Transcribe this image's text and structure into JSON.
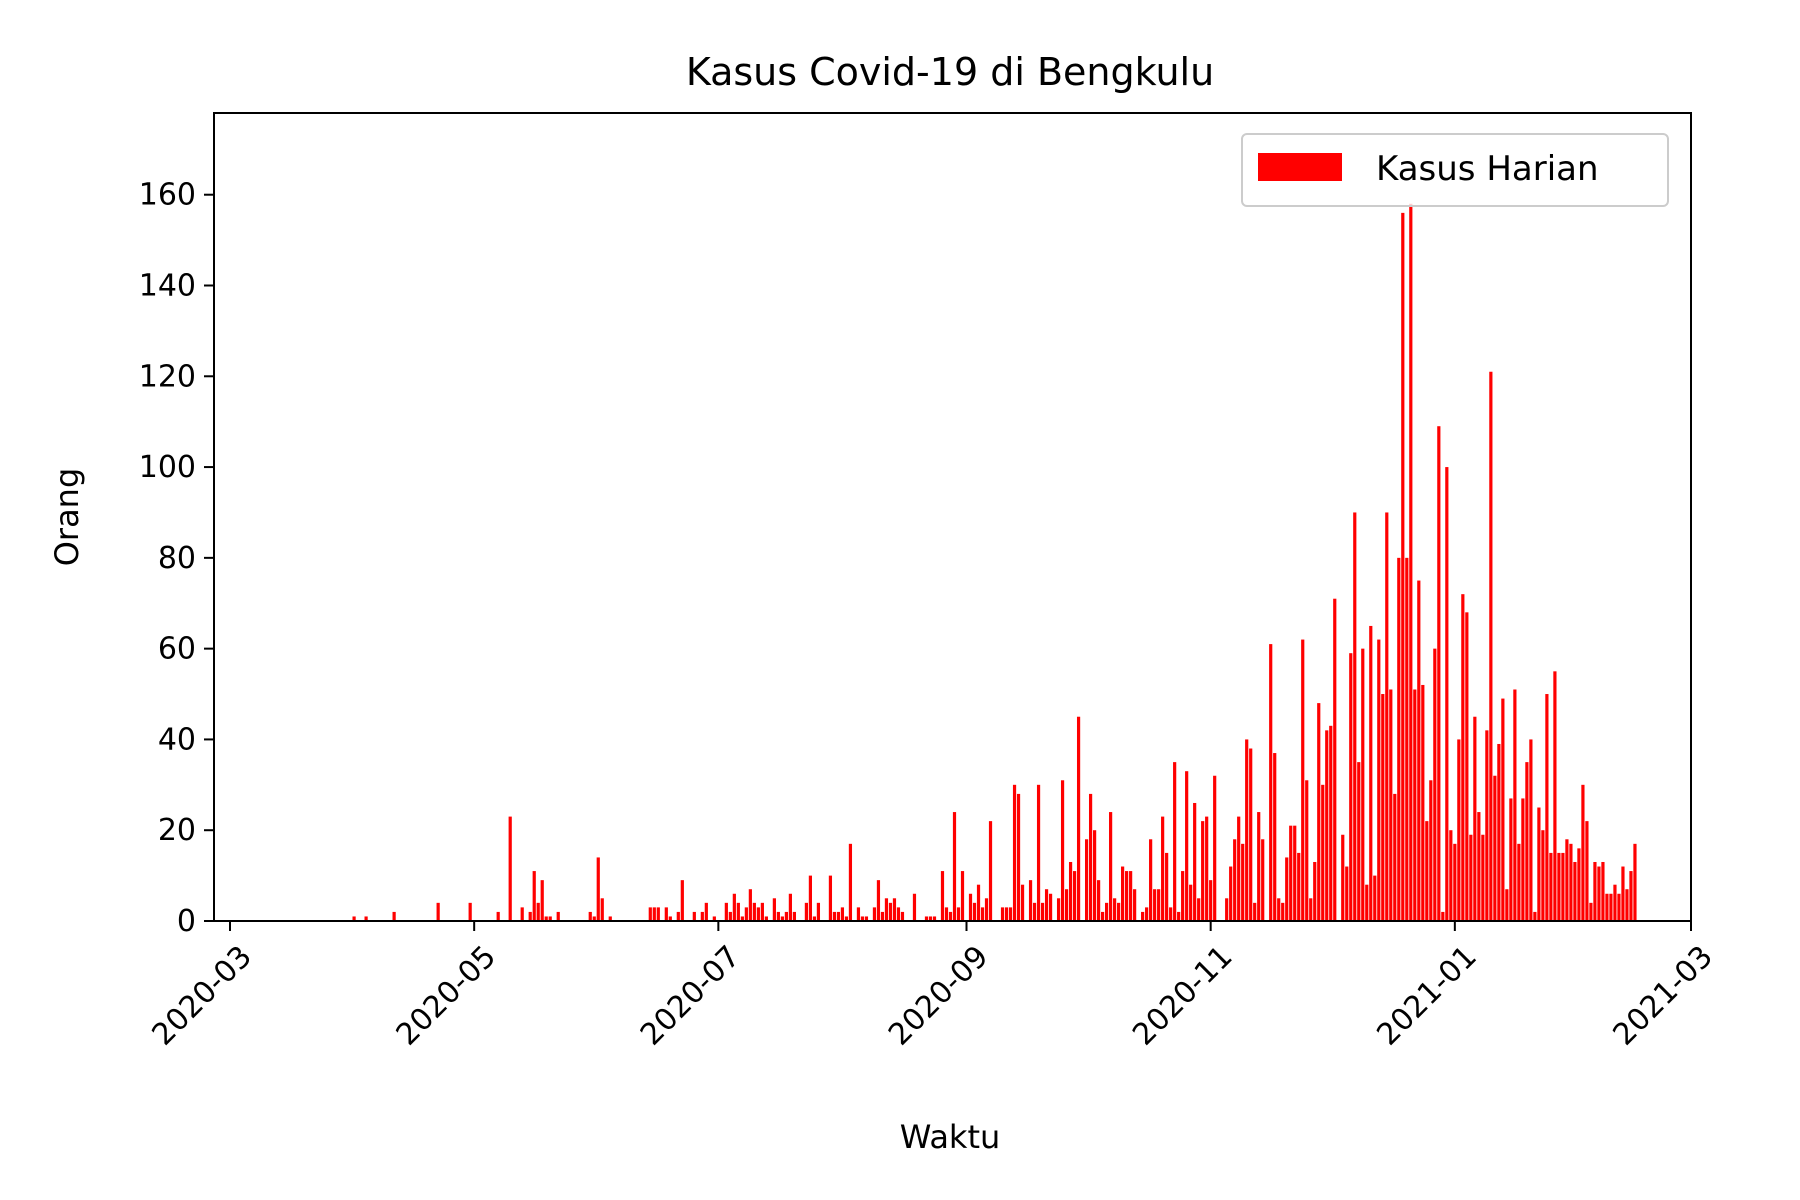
{
  "chart_data": {
    "type": "bar",
    "title": "Kasus Covid-19 di Bengkulu",
    "xlabel": "Waktu",
    "ylabel": "Orang",
    "ylim": [
      0,
      178
    ],
    "xlim": [
      "2020-02-26",
      "2021-03-01"
    ],
    "yticks": [
      0,
      20,
      40,
      60,
      80,
      100,
      120,
      140,
      160
    ],
    "xticks": [
      "2020-03",
      "2020-05",
      "2020-07",
      "2020-09",
      "2020-11",
      "2021-01",
      "2021-03"
    ],
    "xtick_dates": [
      "2020-03-01",
      "2020-05-01",
      "2020-07-01",
      "2020-09-01",
      "2020-11-01",
      "2021-01-01",
      "2021-03-01"
    ],
    "grid": false,
    "legend_position": "top-right",
    "bar_color": "#ff0000",
    "series": [
      {
        "name": "Kasus Harian",
        "start_date": "2020-03-01",
        "values": [
          0,
          0,
          0,
          0,
          0,
          0,
          0,
          0,
          0,
          0,
          0,
          0,
          0,
          0,
          0,
          0,
          0,
          0,
          0,
          0,
          0,
          0,
          0,
          0,
          0,
          0,
          0,
          0,
          0,
          0,
          0,
          1,
          0,
          0,
          1,
          0,
          0,
          0,
          0,
          0,
          0,
          2,
          0,
          0,
          0,
          0,
          0,
          0,
          0,
          0,
          0,
          0,
          4,
          0,
          0,
          0,
          0,
          0,
          0,
          0,
          4,
          0,
          0,
          0,
          0,
          0,
          0,
          2,
          0,
          0,
          23,
          0,
          0,
          3,
          0,
          2,
          11,
          4,
          9,
          1,
          1,
          0,
          2,
          0,
          0,
          0,
          0,
          0,
          0,
          0,
          2,
          1,
          14,
          5,
          0,
          1,
          0,
          0,
          0,
          0,
          0,
          0,
          0,
          0,
          0,
          3,
          3,
          3,
          0,
          3,
          1,
          0,
          2,
          9,
          0,
          0,
          2,
          0,
          2,
          4,
          0,
          1,
          0,
          0,
          4,
          2,
          6,
          4,
          1,
          3,
          7,
          4,
          3,
          4,
          1,
          0,
          5,
          2,
          1,
          2,
          6,
          2,
          0,
          0,
          4,
          10,
          1,
          4,
          0,
          0,
          10,
          2,
          2,
          3,
          1,
          17,
          0,
          3,
          1,
          1,
          0,
          3,
          9,
          2,
          5,
          4,
          5,
          3,
          2,
          0,
          0,
          6,
          0,
          0,
          1,
          1,
          1,
          0,
          11,
          3,
          2,
          24,
          3,
          11,
          0,
          6,
          4,
          8,
          3,
          5,
          22,
          0,
          0,
          3,
          3,
          3,
          30,
          28,
          8,
          0,
          9,
          4,
          30,
          4,
          7,
          6,
          0,
          5,
          31,
          7,
          13,
          11,
          45,
          0,
          18,
          28,
          20,
          9,
          2,
          4,
          24,
          5,
          4,
          12,
          11,
          11,
          7,
          0,
          2,
          3,
          18,
          7,
          7,
          23,
          15,
          3,
          35,
          2,
          11,
          33,
          8,
          26,
          5,
          22,
          23,
          9,
          32,
          0,
          0,
          5,
          12,
          18,
          23,
          17,
          40,
          38,
          4,
          24,
          18,
          0,
          61,
          37,
          5,
          4,
          14,
          21,
          21,
          15,
          62,
          31,
          5,
          13,
          48,
          30,
          42,
          43,
          71,
          0,
          19,
          12,
          59,
          90,
          35,
          60,
          8,
          65,
          10,
          62,
          50,
          90,
          51,
          28,
          80,
          156,
          80,
          158,
          51,
          75,
          52,
          22,
          31,
          60,
          109,
          2,
          100,
          20,
          17,
          40,
          72,
          68,
          19,
          45,
          24,
          19,
          42,
          121,
          32,
          39,
          49,
          7,
          27,
          51,
          17,
          27,
          35,
          40,
          2,
          25,
          20,
          50,
          15,
          55,
          15,
          15,
          18,
          17,
          13,
          16,
          30,
          22,
          4,
          13,
          12,
          13,
          6,
          6,
          8,
          6,
          12,
          7,
          11,
          17
        ]
      }
    ]
  }
}
